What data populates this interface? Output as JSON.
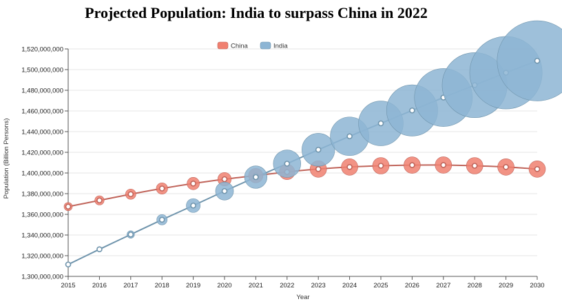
{
  "chart_data": {
    "type": "line",
    "title": "Projected Population: India to surpass China in 2022",
    "xlabel": "Year",
    "ylabel": "Population (Billion Persons)",
    "x": [
      2015,
      2016,
      2017,
      2018,
      2019,
      2020,
      2021,
      2022,
      2023,
      2024,
      2025,
      2026,
      2027,
      2028,
      2029,
      2030
    ],
    "ylim": [
      1300000000,
      1520000000
    ],
    "yticks": [
      1300000000,
      1320000000,
      1340000000,
      1360000000,
      1380000000,
      1400000000,
      1420000000,
      1440000000,
      1460000000,
      1480000000,
      1500000000,
      1520000000
    ],
    "ytick_labels": [
      "1,300,000,000",
      "1,320,000,000",
      "1,340,000,000",
      "1,360,000,000",
      "1,380,000,000",
      "1,400,000,000",
      "1,420,000,000",
      "1,440,000,000",
      "1,460,000,000",
      "1,480,000,000",
      "1,500,000,000",
      "1,520,000,000"
    ],
    "grid": "horizontal",
    "legend_position": "top-center",
    "series": [
      {
        "name": "China",
        "line_color": "#c0645a",
        "bubble_color": "#f08070",
        "values": [
          1367500000,
          1373500000,
          1379500000,
          1385000000,
          1389800000,
          1394000000,
          1397500000,
          1401000000,
          1403800000,
          1405800000,
          1407000000,
          1407600000,
          1407700000,
          1407000000,
          1405800000,
          1403800000
        ]
      },
      {
        "name": "India",
        "line_color": "#6f94ac",
        "bubble_color": "#8db5d4",
        "values": [
          1311500000,
          1326200000,
          1340500000,
          1354800000,
          1368500000,
          1382500000,
          1396000000,
          1409000000,
          1422500000,
          1435500000,
          1448000000,
          1460500000,
          1473000000,
          1485000000,
          1497000000,
          1508500000
        ]
      }
    ]
  }
}
